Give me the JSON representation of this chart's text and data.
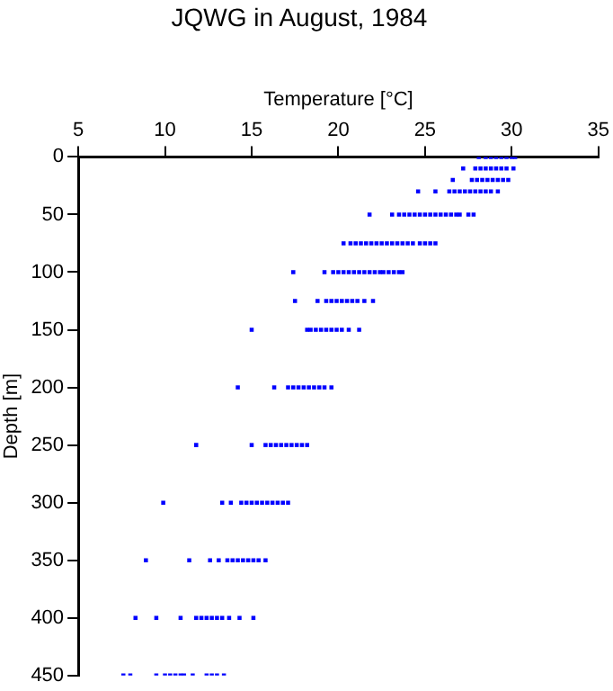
{
  "chart_data": {
    "type": "scatter",
    "title": "JQWG in August, 1984",
    "xlabel": "Temperature [°C]",
    "ylabel": "Depth [m]",
    "xlim": [
      5,
      35
    ],
    "xticks": [
      5,
      10,
      15,
      20,
      25,
      30,
      35
    ],
    "ylim": [
      450,
      0
    ],
    "yticks": [
      0,
      50,
      100,
      150,
      200,
      250,
      300,
      350,
      400,
      450
    ],
    "grid": false,
    "legend": false,
    "marker": "square",
    "series": [
      {
        "color": "#0000ff",
        "x": [
          28.1,
          28.5,
          28.8,
          29.1,
          29.4,
          29.7,
          30.0,
          30.2,
          27.2,
          27.9,
          28.2,
          28.5,
          28.8,
          29.1,
          29.4,
          29.7,
          30.1,
          26.6,
          27.7,
          28.0,
          28.3,
          28.6,
          28.9,
          29.2,
          29.5,
          29.8,
          24.6,
          25.6,
          26.4,
          26.7,
          27.0,
          27.3,
          27.6,
          27.9,
          28.2,
          28.5,
          28.8,
          29.2,
          21.8,
          23.1,
          23.5,
          23.8,
          24.1,
          24.4,
          24.7,
          25.0,
          25.3,
          25.6,
          25.9,
          26.2,
          26.5,
          26.8,
          27.0,
          27.5,
          27.8,
          20.3,
          20.7,
          21.0,
          21.3,
          21.6,
          21.9,
          22.2,
          22.5,
          22.8,
          23.1,
          23.4,
          23.7,
          24.0,
          24.3,
          24.7,
          25.0,
          25.3,
          25.6,
          17.4,
          19.2,
          19.7,
          20.0,
          20.3,
          20.6,
          20.9,
          21.2,
          21.5,
          21.8,
          22.1,
          22.4,
          22.6,
          22.9,
          23.2,
          23.5,
          23.7,
          17.5,
          18.8,
          19.3,
          19.6,
          19.9,
          20.2,
          20.5,
          20.8,
          21.1,
          21.5,
          22.0,
          15.0,
          18.2,
          18.4,
          18.7,
          19.0,
          19.3,
          19.6,
          19.9,
          20.2,
          20.6,
          21.2,
          14.2,
          16.3,
          17.1,
          17.4,
          17.7,
          18.0,
          18.3,
          18.6,
          18.9,
          19.2,
          19.6,
          11.8,
          15.0,
          15.8,
          16.1,
          16.4,
          16.7,
          17.0,
          17.3,
          17.6,
          17.9,
          18.2,
          9.9,
          13.3,
          13.8,
          14.4,
          14.7,
          15.0,
          15.3,
          15.6,
          15.9,
          16.2,
          16.5,
          16.8,
          17.1,
          8.9,
          11.4,
          12.6,
          13.1,
          13.6,
          13.9,
          14.2,
          14.5,
          14.8,
          15.1,
          15.4,
          15.8,
          8.3,
          9.5,
          10.9,
          11.8,
          12.1,
          12.4,
          12.7,
          13.0,
          13.3,
          13.7,
          14.3,
          15.1,
          7.6,
          8.0,
          9.5,
          10.0,
          10.3,
          10.6,
          10.9,
          11.1,
          11.6,
          12.4,
          12.7,
          13.0,
          13.4
        ],
        "values": [
          0,
          0,
          0,
          0,
          0,
          0,
          0,
          0,
          10,
          10,
          10,
          10,
          10,
          10,
          10,
          10,
          10,
          20,
          20,
          20,
          20,
          20,
          20,
          20,
          20,
          20,
          30,
          30,
          30,
          30,
          30,
          30,
          30,
          30,
          30,
          30,
          30,
          30,
          50,
          50,
          50,
          50,
          50,
          50,
          50,
          50,
          50,
          50,
          50,
          50,
          50,
          50,
          50,
          50,
          50,
          75,
          75,
          75,
          75,
          75,
          75,
          75,
          75,
          75,
          75,
          75,
          75,
          75,
          75,
          75,
          75,
          75,
          75,
          100,
          100,
          100,
          100,
          100,
          100,
          100,
          100,
          100,
          100,
          100,
          100,
          100,
          100,
          100,
          100,
          100,
          125,
          125,
          125,
          125,
          125,
          125,
          125,
          125,
          125,
          125,
          125,
          150,
          150,
          150,
          150,
          150,
          150,
          150,
          150,
          150,
          150,
          150,
          200,
          200,
          200,
          200,
          200,
          200,
          200,
          200,
          200,
          200,
          200,
          250,
          250,
          250,
          250,
          250,
          250,
          250,
          250,
          250,
          250,
          250,
          300,
          300,
          300,
          300,
          300,
          300,
          300,
          300,
          300,
          300,
          300,
          300,
          300,
          350,
          350,
          350,
          350,
          350,
          350,
          350,
          350,
          350,
          350,
          350,
          350,
          400,
          400,
          400,
          400,
          400,
          400,
          400,
          400,
          400,
          400,
          400,
          400,
          450,
          450,
          450,
          450,
          450,
          450,
          450,
          450,
          450,
          450,
          450,
          450,
          450
        ]
      }
    ]
  }
}
